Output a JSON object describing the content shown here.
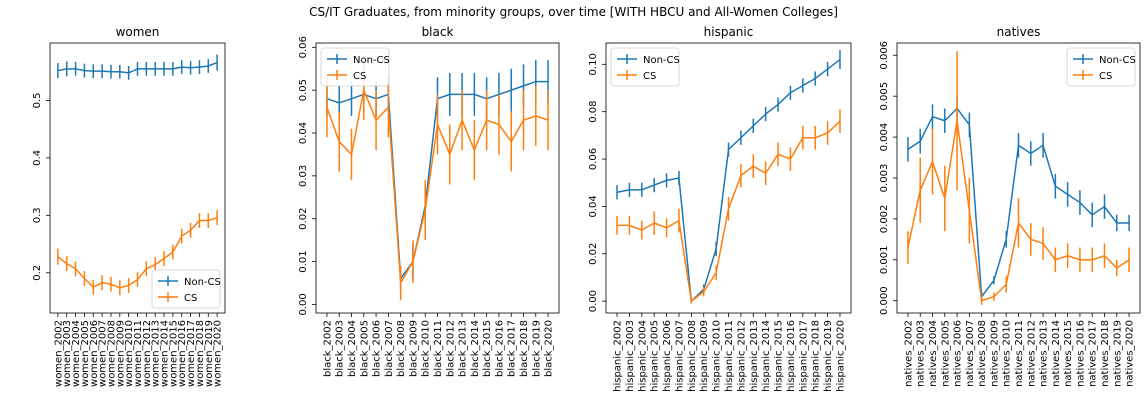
{
  "figure_title": "CS/IT Graduates, from minority groups, over time [WITH HBCU and All-Women Colleges]",
  "colors": {
    "noncs": "#1f77b4",
    "cs": "#ff7f0e"
  },
  "chart_data": [
    {
      "type": "line",
      "title": "women",
      "categories": [
        "women_2002",
        "women_2003",
        "women_2004",
        "women_2005",
        "women_2006",
        "women_2007",
        "women_2008",
        "women_2009",
        "women_2010",
        "women_2011",
        "women_2012",
        "women_2013",
        "women_2014",
        "women_2015",
        "women_2016",
        "women_2017",
        "women_2018",
        "women_2019",
        "women_2020"
      ],
      "ylim": [
        0.13,
        0.6
      ],
      "yticks": [
        0.2,
        0.3,
        0.4,
        0.5
      ],
      "ytick_labels": [
        "0.2",
        "0.3",
        "0.4",
        "0.5"
      ],
      "legend": {
        "position": "bottom-right",
        "order": [
          "Non-CS",
          "CS"
        ]
      },
      "series": [
        {
          "name": "Non-CS",
          "values": [
            0.552,
            0.555,
            0.555,
            0.552,
            0.551,
            0.551,
            0.55,
            0.55,
            0.548,
            0.555,
            0.555,
            0.555,
            0.555,
            0.555,
            0.558,
            0.557,
            0.558,
            0.56,
            0.566
          ],
          "errors": [
            0.013,
            0.013,
            0.012,
            0.012,
            0.012,
            0.012,
            0.012,
            0.012,
            0.012,
            0.012,
            0.012,
            0.012,
            0.012,
            0.012,
            0.012,
            0.012,
            0.012,
            0.012,
            0.014
          ]
        },
        {
          "name": "CS",
          "values": [
            0.228,
            0.216,
            0.207,
            0.19,
            0.175,
            0.183,
            0.18,
            0.174,
            0.178,
            0.188,
            0.207,
            0.214,
            0.225,
            0.236,
            0.264,
            0.274,
            0.291,
            0.291,
            0.296
          ],
          "errors": [
            0.014,
            0.013,
            0.013,
            0.013,
            0.013,
            0.013,
            0.013,
            0.013,
            0.013,
            0.013,
            0.013,
            0.013,
            0.013,
            0.013,
            0.013,
            0.013,
            0.013,
            0.013,
            0.013
          ]
        }
      ]
    },
    {
      "type": "line",
      "title": "black",
      "categories": [
        "black_2002",
        "black_2003",
        "black_2004",
        "black_2005",
        "black_2006",
        "black_2007",
        "black_2008",
        "black_2009",
        "black_2010",
        "black_2011",
        "black_2012",
        "black_2013",
        "black_2014",
        "black_2015",
        "black_2016",
        "black_2017",
        "black_2018",
        "black_2019",
        "black_2020"
      ],
      "ylim": [
        -0.002,
        0.061
      ],
      "yticks": [
        0,
        0.01,
        0.02,
        0.03,
        0.04,
        0.05,
        0.06
      ],
      "ytick_labels": [
        "0.00",
        "0.01",
        "0.02",
        "0.03",
        "0.04",
        "0.05",
        "0.06"
      ],
      "legend": {
        "position": "top-left",
        "order": [
          "Non-CS",
          "CS"
        ]
      },
      "series": [
        {
          "name": "Non-CS",
          "values": [
            0.048,
            0.047,
            0.048,
            0.049,
            0.048,
            0.049,
            0.006,
            0.01,
            0.023,
            0.048,
            0.049,
            0.049,
            0.049,
            0.048,
            0.049,
            0.05,
            0.051,
            0.052,
            0.052
          ],
          "errors": [
            0.004,
            0.004,
            0.004,
            0.004,
            0.004,
            0.004,
            0.003,
            0.004,
            0.005,
            0.005,
            0.005,
            0.005,
            0.005,
            0.005,
            0.005,
            0.005,
            0.005,
            0.005,
            0.005
          ]
        },
        {
          "name": "CS",
          "values": [
            0.046,
            0.038,
            0.035,
            0.05,
            0.043,
            0.046,
            0.005,
            0.01,
            0.022,
            0.042,
            0.035,
            0.043,
            0.036,
            0.043,
            0.042,
            0.038,
            0.043,
            0.044,
            0.043
          ],
          "errors": [
            0.007,
            0.007,
            0.006,
            0.007,
            0.007,
            0.007,
            0.004,
            0.005,
            0.007,
            0.007,
            0.007,
            0.007,
            0.007,
            0.007,
            0.007,
            0.007,
            0.007,
            0.007,
            0.007
          ]
        }
      ]
    },
    {
      "type": "line",
      "title": "hispanic",
      "categories": [
        "hispanic_2002",
        "hispanic_2003",
        "hispanic_2004",
        "hispanic_2005",
        "hispanic_2006",
        "hispanic_2007",
        "hispanic_2008",
        "hispanic_2009",
        "hispanic_2010",
        "hispanic_2011",
        "hispanic_2012",
        "hispanic_2013",
        "hispanic_2014",
        "hispanic_2015",
        "hispanic_2016",
        "hispanic_2017",
        "hispanic_2018",
        "hispanic_2019",
        "hispanic_2020"
      ],
      "ylim": [
        -0.005,
        0.109
      ],
      "yticks": [
        0,
        0.02,
        0.04,
        0.06,
        0.08,
        0.1
      ],
      "ytick_labels": [
        "0.00",
        "0.02",
        "0.04",
        "0.06",
        "0.08",
        "0.10"
      ],
      "legend": {
        "position": "top-left",
        "order": [
          "Non-CS",
          "CS"
        ]
      },
      "series": [
        {
          "name": "Non-CS",
          "values": [
            0.046,
            0.047,
            0.047,
            0.049,
            0.051,
            0.052,
            0.0,
            0.005,
            0.022,
            0.064,
            0.069,
            0.074,
            0.079,
            0.083,
            0.088,
            0.091,
            0.094,
            0.098,
            0.102
          ],
          "errors": [
            0.003,
            0.003,
            0.003,
            0.003,
            0.003,
            0.003,
            0.001,
            0.002,
            0.003,
            0.003,
            0.003,
            0.003,
            0.003,
            0.003,
            0.003,
            0.003,
            0.003,
            0.003,
            0.004
          ]
        },
        {
          "name": "CS",
          "values": [
            0.032,
            0.032,
            0.03,
            0.033,
            0.031,
            0.034,
            0.0,
            0.004,
            0.012,
            0.039,
            0.053,
            0.057,
            0.054,
            0.062,
            0.06,
            0.069,
            0.069,
            0.071,
            0.076
          ],
          "errors": [
            0.004,
            0.004,
            0.004,
            0.005,
            0.004,
            0.005,
            0.001,
            0.002,
            0.003,
            0.005,
            0.005,
            0.005,
            0.005,
            0.005,
            0.005,
            0.005,
            0.005,
            0.005,
            0.005
          ]
        }
      ]
    },
    {
      "type": "line",
      "title": "natives",
      "categories": [
        "natives_2002",
        "natives_2003",
        "natives_2004",
        "natives_2005",
        "natives_2006",
        "natives_2007",
        "natives_2008",
        "natives_2009",
        "natives_2010",
        "natives_2011",
        "natives_2012",
        "natives_2013",
        "natives_2014",
        "natives_2015",
        "natives_2016",
        "natives_2017",
        "natives_2018",
        "natives_2019",
        "natives_2020"
      ],
      "ylim": [
        -0.0003,
        0.0063
      ],
      "yticks": [
        0,
        0.001,
        0.002,
        0.003,
        0.004,
        0.005,
        0.006
      ],
      "ytick_labels": [
        "0.000",
        "0.001",
        "0.002",
        "0.003",
        "0.004",
        "0.005",
        "0.006"
      ],
      "legend": {
        "position": "top-right",
        "order": [
          "Non-CS",
          "CS"
        ]
      },
      "series": [
        {
          "name": "Non-CS",
          "values": [
            0.0037,
            0.0039,
            0.0045,
            0.0044,
            0.0047,
            0.0043,
            0.0001,
            0.0005,
            0.0015,
            0.0038,
            0.0036,
            0.0038,
            0.0028,
            0.0026,
            0.0024,
            0.0021,
            0.0023,
            0.0019,
            0.0019
          ],
          "errors": [
            0.0003,
            0.0003,
            0.0003,
            0.0003,
            0.0003,
            0.0003,
            0.0001,
            0.0001,
            0.0002,
            0.0003,
            0.0003,
            0.0003,
            0.0003,
            0.0003,
            0.0003,
            0.0003,
            0.0003,
            0.0002,
            0.0002
          ]
        },
        {
          "name": "CS",
          "values": [
            0.0013,
            0.0027,
            0.0034,
            0.0025,
            0.0044,
            0.0022,
            0.0,
            0.0001,
            0.0004,
            0.0019,
            0.0015,
            0.0014,
            0.001,
            0.0011,
            0.001,
            0.001,
            0.0011,
            0.0008,
            0.001
          ],
          "errors": [
            0.0004,
            0.0008,
            0.0008,
            0.0008,
            0.0017,
            0.0008,
            0.0001,
            0.0001,
            0.0002,
            0.0006,
            0.0004,
            0.0004,
            0.0003,
            0.0003,
            0.0003,
            0.0003,
            0.0003,
            0.0002,
            0.0003
          ]
        }
      ]
    }
  ]
}
